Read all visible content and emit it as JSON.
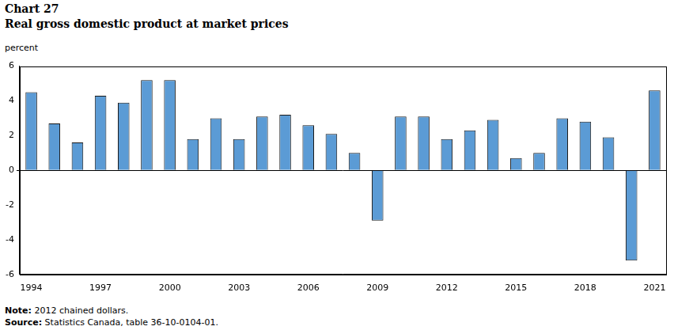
{
  "chart_data": {
    "type": "bar",
    "title": "Chart 27",
    "subtitle": "Real gross domestic product at market prices",
    "y_label": "percent",
    "note": "Note: 2012 chained dollars.",
    "source": "Source: Statistics Canada, table 36-10-0104-01.",
    "categories": [
      "1994",
      null,
      null,
      "1997",
      null,
      null,
      "2000",
      null,
      null,
      "2003",
      null,
      null,
      "2006",
      null,
      null,
      "2009",
      null,
      null,
      "2012",
      null,
      null,
      "2015",
      null,
      null,
      "2018",
      null,
      null,
      "2021"
    ],
    "values": [
      4.5,
      2.7,
      1.6,
      4.3,
      3.9,
      5.2,
      5.2,
      1.8,
      3.0,
      1.8,
      3.1,
      3.2,
      2.6,
      2.1,
      1.0,
      -2.9,
      3.1,
      3.1,
      1.8,
      2.3,
      2.9,
      0.7,
      1.0,
      3.0,
      2.8,
      1.9,
      -5.2,
      4.6
    ],
    "color": "#5b9bd5",
    "ylim": [
      -6,
      6
    ],
    "yticks": [
      -6,
      -4,
      -2,
      0,
      2,
      4,
      6
    ],
    "grid": false
  }
}
